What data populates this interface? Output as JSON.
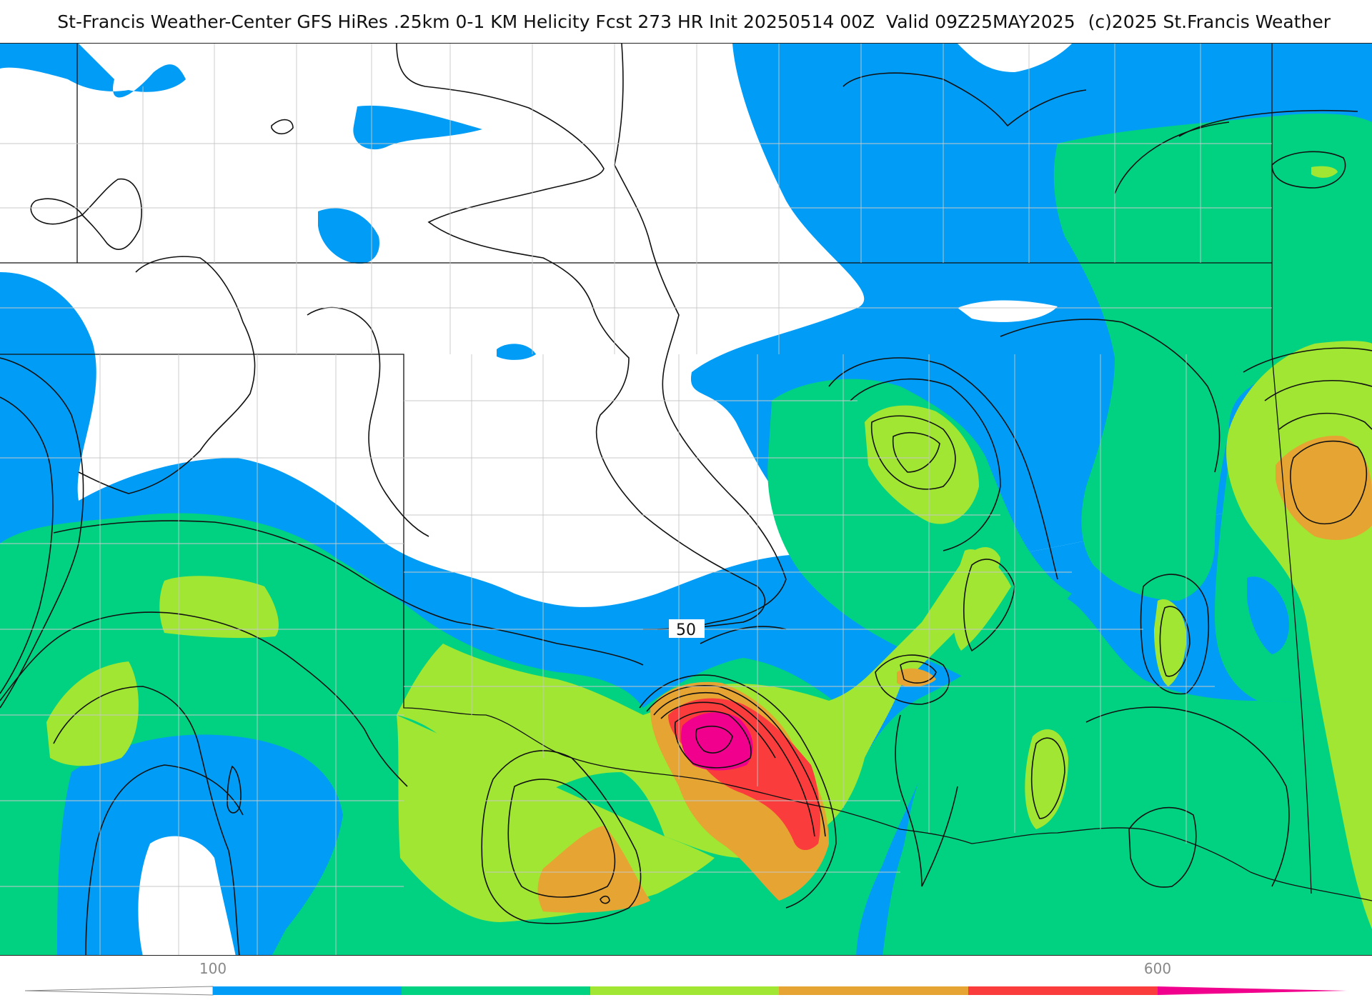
{
  "header": {
    "title": "St-Francis Weather-Center GFS HiRes .25km 0-1 KM Helicity Fcst 273 HR Init 20250514 00Z  Valid 09Z25MAY2025",
    "copyright": "(c)2025 St.Francis Weather"
  },
  "map": {
    "contour_label": "50",
    "fill_colors": {
      "band_100_200": "#009cf5",
      "band_200_300": "#00d282",
      "band_300_400": "#a0e632",
      "band_400_500": "#e6a532",
      "band_500_600": "#fa3c3c",
      "band_600_plus": "#f0008c"
    }
  },
  "legend": {
    "tick_100": "100",
    "tick_600": "600",
    "segments": [
      "#009cf5",
      "#00d282",
      "#a0e632",
      "#e6a532",
      "#fa3c3c"
    ],
    "end_color": "#f0008c"
  }
}
